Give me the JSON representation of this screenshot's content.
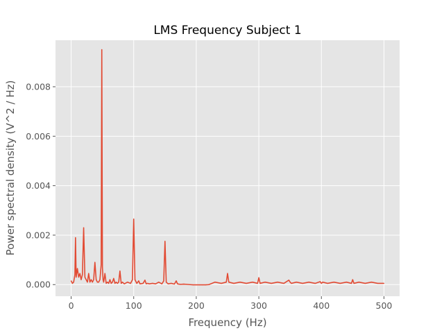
{
  "chart_data": {
    "type": "line",
    "title": "LMS Frequency Subject 1",
    "xlabel": "Frequency (Hz)",
    "ylabel": "Power spectral density (V^2 / Hz)",
    "xlim": [
      -25,
      525
    ],
    "ylim": [
      -0.00047,
      0.00988
    ],
    "xticks": [
      0,
      100,
      200,
      300,
      400,
      500
    ],
    "xtick_labels": [
      "0",
      "100",
      "200",
      "300",
      "400",
      "500"
    ],
    "yticks": [
      0,
      0.002,
      0.004,
      0.006,
      0.008
    ],
    "ytick_labels": [
      "0.000",
      "0.002",
      "0.004",
      "0.006",
      "0.008"
    ],
    "grid": true,
    "style": "ggplot",
    "series_color": "#E24A33",
    "series": [
      {
        "x": [
          0,
          2,
          4,
          6,
          7,
          8,
          10,
          12,
          14,
          16,
          18,
          20,
          22,
          24,
          26,
          28,
          30,
          32,
          34,
          36,
          38,
          40,
          42,
          44,
          46,
          48,
          49,
          50,
          51,
          52,
          54,
          56,
          58,
          60,
          62,
          64,
          66,
          68,
          70,
          72,
          74,
          76,
          78,
          80,
          82,
          85,
          90,
          95,
          98,
          100,
          102,
          105,
          108,
          110,
          115,
          118,
          120,
          122,
          125,
          130,
          135,
          140,
          145,
          148,
          150,
          152,
          155,
          160,
          165,
          168,
          170,
          172,
          175,
          180,
          185,
          190,
          195,
          200,
          205,
          210,
          215,
          220,
          225,
          230,
          240,
          248,
          250,
          252,
          260,
          270,
          280,
          290,
          298,
          300,
          302,
          310,
          320,
          330,
          340,
          348,
          350,
          352,
          360,
          370,
          380,
          390,
          398,
          400,
          402,
          410,
          420,
          430,
          440,
          448,
          450,
          452,
          460,
          470,
          480,
          490,
          500
        ],
        "y": [
          0.00015,
          5e-05,
          0.0001,
          0.0004,
          0.0019,
          0.0003,
          0.00065,
          0.0003,
          0.00045,
          0.0002,
          0.0004,
          0.0023,
          0.0003,
          0.0002,
          0.0001,
          0.00045,
          0.0001,
          0.0002,
          0.0001,
          0.0002,
          0.0009,
          0.0002,
          0.0001,
          0.0001,
          0.0002,
          0.0008,
          0.0095,
          0.0007,
          0.0002,
          0.0001,
          0.00045,
          5e-05,
          0.0001,
          5e-05,
          0.0002,
          5e-05,
          0.0001,
          0.00025,
          5e-05,
          0.0001,
          5e-05,
          0.0001,
          0.00055,
          5e-05,
          0.0001,
          3e-05,
          0.0001,
          5e-05,
          0.0002,
          0.00265,
          0.0002,
          5e-05,
          0.00015,
          3e-05,
          5e-05,
          0.00018,
          3e-05,
          5e-05,
          3e-05,
          5e-05,
          3e-05,
          0.0001,
          3e-05,
          0.00015,
          0.00175,
          0.0001,
          3e-05,
          5e-05,
          2e-05,
          0.00015,
          3e-05,
          2e-05,
          1e-05,
          2e-05,
          1e-05,
          0.0,
          -1e-05,
          -1e-05,
          -1e-05,
          -1e-05,
          -1e-05,
          0.0,
          5e-05,
          0.0001,
          5e-05,
          0.0001,
          0.00045,
          0.0001,
          5e-05,
          0.0001,
          5e-05,
          0.0001,
          5e-05,
          0.00028,
          5e-05,
          0.0001,
          5e-05,
          0.0001,
          5e-05,
          0.00018,
          0.0001,
          5e-05,
          0.0001,
          5e-05,
          0.0001,
          5e-05,
          0.00012,
          5e-05,
          0.0001,
          5e-05,
          0.0001,
          5e-05,
          0.0001,
          5e-05,
          0.0002,
          5e-05,
          0.0001,
          5e-05,
          0.0001,
          5e-05,
          5e-05
        ]
      }
    ]
  }
}
